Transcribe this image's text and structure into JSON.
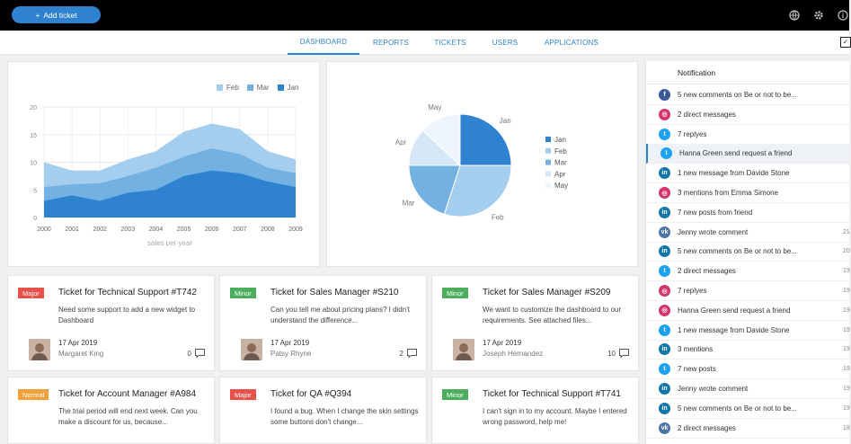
{
  "topbar": {
    "add_ticket_label": "Add ticket",
    "add_ticket_plus": "+"
  },
  "nav": {
    "tabs": [
      "DASHBOARD",
      "REPORTS",
      "TICKETS",
      "USERS",
      "APPLICATIONS"
    ],
    "active": "DASHBOARD"
  },
  "colors": {
    "accent": "#2f82d0",
    "jan": "#2f82d0",
    "feb": "#a4cdee",
    "mar": "#72b1e2",
    "apr": "#d6e8f7",
    "may": "#eef5fc",
    "major": "#e8504a",
    "minor": "#4cae5c",
    "normal": "#f0a13a"
  },
  "chart_data": [
    {
      "type": "area",
      "x": [
        "2000",
        "2001",
        "2002",
        "2003",
        "2004",
        "2005",
        "2006",
        "2007",
        "2008",
        "2009"
      ],
      "xlabel": "sales per year",
      "ylim": [
        0,
        20
      ],
      "yticks": [
        "0",
        "5",
        "10",
        "15",
        "20"
      ],
      "series": [
        {
          "name": "Jan",
          "values": [
            3,
            4,
            3,
            4.5,
            5,
            7.5,
            8.5,
            8,
            6.5,
            5.5
          ]
        },
        {
          "name": "Mar",
          "values": [
            5.5,
            6,
            6.2,
            7.5,
            9,
            11,
            12.5,
            11.5,
            9,
            8
          ]
        },
        {
          "name": "Feb",
          "values": [
            10,
            8.5,
            8.5,
            10.5,
            12,
            15.5,
            17,
            16,
            12,
            10.5
          ]
        }
      ],
      "legend": [
        "Feb",
        "Mar",
        "Jan"
      ],
      "legend_position": "top-right",
      "grid": true
    },
    {
      "type": "pie",
      "labels": [
        "Jan",
        "Feb",
        "Mar",
        "Apr",
        "May"
      ],
      "values": [
        25,
        30,
        20,
        12,
        13
      ],
      "legend": [
        "Jan",
        "Feb",
        "Mar",
        "Apr",
        "May"
      ],
      "legend_position": "right"
    }
  ],
  "tickets": [
    {
      "badge": "Major",
      "badge_type": "major",
      "title": "Ticket for Technical Support #T742",
      "desc": "Need some support to add a new widget to Dashboard",
      "date": "17 Apr 2019",
      "name": "Margaret King",
      "count": "0"
    },
    {
      "badge": "Minor",
      "badge_type": "minor",
      "title": "Ticket for Sales Manager #S210",
      "desc": "Can you tell me about pricing plans? I didn't understand the difference...",
      "date": "17 Apr 2019",
      "name": "Patsy Rhyne",
      "count": "2"
    },
    {
      "badge": "Minor",
      "badge_type": "minor",
      "title": "Ticket for Sales Manager #S209",
      "desc": "We want to customize the dashboard to our requirements. See attached files...",
      "date": "17 Apr 2019",
      "name": "Joseph Hernandez",
      "count": "10"
    },
    {
      "badge": "Normal",
      "badge_type": "normal",
      "title": "Ticket for Account Manager #A984",
      "desc": "The trial period will end next week. Can you make a discount for us, because...",
      "date": "",
      "name": "",
      "count": ""
    },
    {
      "badge": "Major",
      "badge_type": "major",
      "title": "Ticket for QA #Q394",
      "desc": "I found a bug. When I change the skin settings some buttons don't change...",
      "date": "",
      "name": "",
      "count": ""
    },
    {
      "badge": "Minor",
      "badge_type": "minor",
      "title": "Ticket for Technical Support #T741",
      "desc": "I can't sign in to my account. Maybe I entered wrong password, help me!",
      "date": "",
      "name": "",
      "count": ""
    }
  ],
  "notifications": {
    "header": "Notification",
    "items": [
      {
        "icon": "facebook",
        "glyph": "f",
        "color": "#3b5998",
        "text": "5 new comments on Be or not to be...",
        "num": ""
      },
      {
        "icon": "instagram",
        "glyph": "◎",
        "color": "#d6336c",
        "text": "2 direct messages",
        "num": ""
      },
      {
        "icon": "twitter",
        "glyph": "t",
        "color": "#1da1f2",
        "text": "7 replyes",
        "num": ""
      },
      {
        "icon": "twitter",
        "glyph": "t",
        "color": "#1da1f2",
        "text": "Hanna Green send request a friend",
        "num": "",
        "hl": true
      },
      {
        "icon": "linkedin",
        "glyph": "in",
        "color": "#0e76a8",
        "text": "1 new message from Davide Stone",
        "num": ""
      },
      {
        "icon": "instagram",
        "glyph": "◎",
        "color": "#d6336c",
        "text": "3 mentions from Emma Simone",
        "num": ""
      },
      {
        "icon": "linkedin",
        "glyph": "in",
        "color": "#0e76a8",
        "text": "7 new posts from friend",
        "num": ""
      },
      {
        "icon": "vk",
        "glyph": "vk",
        "color": "#4a76a8",
        "text": "Jenny wrote comment",
        "num": "21"
      },
      {
        "icon": "linkedin",
        "glyph": "in",
        "color": "#0e76a8",
        "text": "5 new comments on Be or not to be...",
        "num": "20"
      },
      {
        "icon": "twitter",
        "glyph": "t",
        "color": "#1da1f2",
        "text": "2 direct messages",
        "num": "19"
      },
      {
        "icon": "instagram",
        "glyph": "◎",
        "color": "#d6336c",
        "text": "7 replyes",
        "num": "19"
      },
      {
        "icon": "instagram",
        "glyph": "◎",
        "color": "#d6336c",
        "text": "Hanna Green send request a friend",
        "num": "19"
      },
      {
        "icon": "twitter",
        "glyph": "t",
        "color": "#1da1f2",
        "text": "1 new message from Davide Stone",
        "num": "19"
      },
      {
        "icon": "linkedin",
        "glyph": "in",
        "color": "#0e76a8",
        "text": "3 mentions",
        "num": "19"
      },
      {
        "icon": "twitter",
        "glyph": "t",
        "color": "#1da1f2",
        "text": "7 new posts",
        "num": "19"
      },
      {
        "icon": "linkedin",
        "glyph": "in",
        "color": "#0e76a8",
        "text": "Jenny wrote comment",
        "num": "19"
      },
      {
        "icon": "linkedin",
        "glyph": "in",
        "color": "#0e76a8",
        "text": "5 new comments on Be or not to be...",
        "num": "19"
      },
      {
        "icon": "vk",
        "glyph": "vk",
        "color": "#4a76a8",
        "text": "2 direct messages",
        "num": "18"
      }
    ]
  }
}
